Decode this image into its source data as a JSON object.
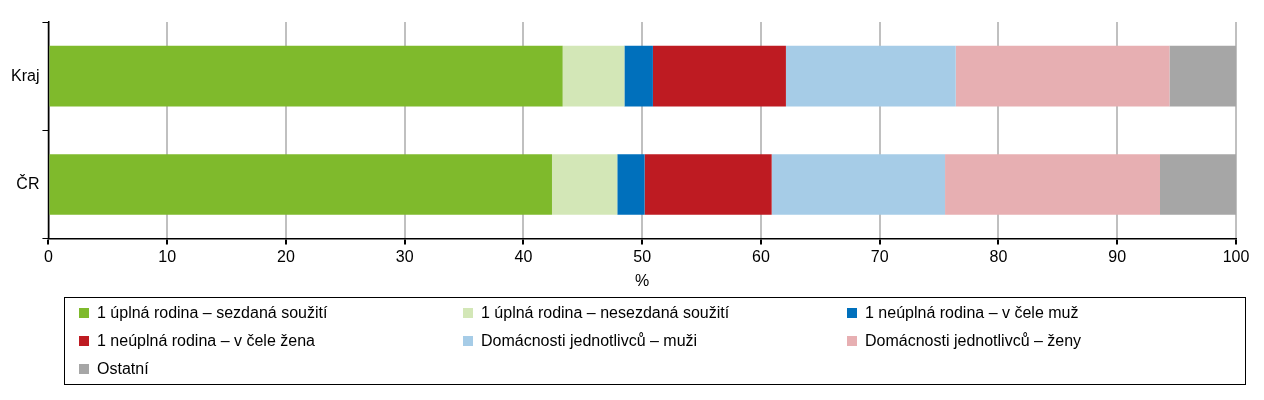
{
  "chart_data": {
    "type": "bar",
    "orientation": "horizontal",
    "stacked": true,
    "categories": [
      "Kraj",
      "ČR"
    ],
    "xlabel": "%",
    "xlim": [
      0,
      100
    ],
    "xticks": [
      0,
      10,
      20,
      30,
      40,
      50,
      60,
      70,
      80,
      90,
      100
    ],
    "grid": "x",
    "legend": "bottom",
    "series": [
      {
        "name": "1 úplná rodina – sezdaná soužití",
        "color": "#7fba2c",
        "values": [
          43.3,
          42.4
        ]
      },
      {
        "name": "1 úplná rodina – nesezdaná soužití",
        "color": "#d3e7b7",
        "values": [
          5.2,
          5.5
        ]
      },
      {
        "name": "1 neúplná rodina – v čele muž",
        "color": "#0070bc",
        "values": [
          2.4,
          2.3
        ]
      },
      {
        "name": "1 neúplná rodina – v čele žena",
        "color": "#be1b22",
        "values": [
          11.2,
          10.7
        ]
      },
      {
        "name": "Domácnosti jednotlivců – muži",
        "color": "#a6cce7",
        "values": [
          14.3,
          14.6
        ]
      },
      {
        "name": "Domácnosti jednotlivců – ženy",
        "color": "#e7afb2",
        "values": [
          18.0,
          18.1
        ]
      },
      {
        "name": "Ostatní",
        "color": "#a6a6a6",
        "values": [
          5.6,
          6.4
        ]
      }
    ]
  }
}
